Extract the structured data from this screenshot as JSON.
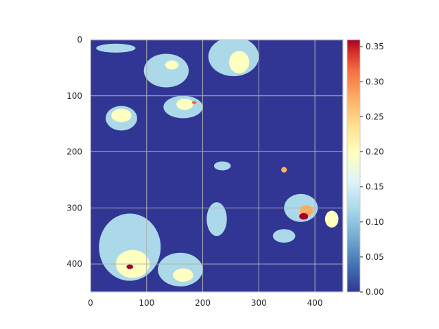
{
  "chart_data": {
    "type": "heatmap",
    "title": "",
    "xlabel": "",
    "ylabel": "",
    "xlim": [
      0,
      450
    ],
    "ylim": [
      450,
      0
    ],
    "y_inverted": true,
    "grid": true,
    "x_ticks": [
      0,
      100,
      200,
      300,
      400
    ],
    "y_ticks": [
      0,
      100,
      200,
      300,
      400
    ],
    "x_tick_labels": [
      "0",
      "100",
      "200",
      "300",
      "400"
    ],
    "y_tick_labels": [
      "0",
      "100",
      "200",
      "300",
      "400"
    ],
    "colormap": "RdYlBu_r",
    "colors": {
      "background": "#313695",
      "low": "#abd9e9",
      "mid_low": "#e0f3f8",
      "mid": "#ffffbf",
      "mid_high": "#fdae61",
      "high": "#f46d43",
      "max": "#a50026",
      "grid": "#b0b0b0",
      "frame": "#cccccc"
    },
    "colorbar": {
      "range": [
        0,
        0.36
      ],
      "ticks": [
        0.0,
        0.05,
        0.1,
        0.15,
        0.2,
        0.25,
        0.3,
        0.35
      ],
      "tick_labels": [
        "0.00",
        "0.05",
        "0.10",
        "0.15",
        "0.20",
        "0.25",
        "0.30",
        "0.35"
      ]
    },
    "regions": [
      {
        "name": "blob-top-left",
        "x": 45,
        "y": 15,
        "rx": 35,
        "ry": 8,
        "value": 0.1
      },
      {
        "name": "blob-top-center",
        "x": 135,
        "y": 55,
        "rx": 40,
        "ry": 30,
        "value": 0.1
      },
      {
        "name": "blob-top-center-core",
        "x": 145,
        "y": 45,
        "rx": 12,
        "ry": 8,
        "value": 0.2
      },
      {
        "name": "blob-top-right",
        "x": 255,
        "y": 30,
        "rx": 45,
        "ry": 35,
        "value": 0.1
      },
      {
        "name": "blob-top-right-core",
        "x": 265,
        "y": 40,
        "rx": 18,
        "ry": 20,
        "value": 0.2
      },
      {
        "name": "blob-left-mid",
        "x": 55,
        "y": 140,
        "rx": 28,
        "ry": 22,
        "value": 0.1
      },
      {
        "name": "blob-left-mid-core",
        "x": 55,
        "y": 135,
        "rx": 18,
        "ry": 12,
        "value": 0.2
      },
      {
        "name": "blob-center-top",
        "x": 165,
        "y": 120,
        "rx": 35,
        "ry": 20,
        "value": 0.1
      },
      {
        "name": "blob-center-top-core",
        "x": 168,
        "y": 115,
        "rx": 15,
        "ry": 10,
        "value": 0.2
      },
      {
        "name": "blob-center-top-hot",
        "x": 185,
        "y": 112,
        "rx": 4,
        "ry": 3,
        "value": 0.33
      },
      {
        "name": "blob-right-mid",
        "x": 375,
        "y": 300,
        "rx": 30,
        "ry": 25,
        "value": 0.1
      },
      {
        "name": "blob-right-mid-core",
        "x": 385,
        "y": 305,
        "rx": 12,
        "ry": 10,
        "value": 0.25
      },
      {
        "name": "blob-right-mid-hot",
        "x": 380,
        "y": 315,
        "rx": 8,
        "ry": 6,
        "value": 0.36
      },
      {
        "name": "blob-right-edge",
        "x": 430,
        "y": 320,
        "rx": 12,
        "ry": 15,
        "value": 0.2
      },
      {
        "name": "blob-center",
        "x": 225,
        "y": 320,
        "rx": 18,
        "ry": 30,
        "value": 0.1
      },
      {
        "name": "blob-bottom-left",
        "x": 70,
        "y": 370,
        "rx": 55,
        "ry": 60,
        "value": 0.1
      },
      {
        "name": "blob-bottom-left-core",
        "x": 75,
        "y": 400,
        "rx": 30,
        "ry": 25,
        "value": 0.2
      },
      {
        "name": "blob-bottom-left-hot",
        "x": 70,
        "y": 405,
        "rx": 6,
        "ry": 4,
        "value": 0.35
      },
      {
        "name": "blob-bottom-center",
        "x": 160,
        "y": 410,
        "rx": 40,
        "ry": 30,
        "value": 0.1
      },
      {
        "name": "blob-bottom-center-core",
        "x": 165,
        "y": 420,
        "rx": 18,
        "ry": 12,
        "value": 0.2
      },
      {
        "name": "blob-center-right",
        "x": 235,
        "y": 225,
        "rx": 15,
        "ry": 8,
        "value": 0.1
      },
      {
        "name": "blob-right-small",
        "x": 345,
        "y": 232,
        "rx": 5,
        "ry": 5,
        "value": 0.25
      },
      {
        "name": "blob-right-lower",
        "x": 345,
        "y": 350,
        "rx": 20,
        "ry": 12,
        "value": 0.1
      }
    ]
  }
}
